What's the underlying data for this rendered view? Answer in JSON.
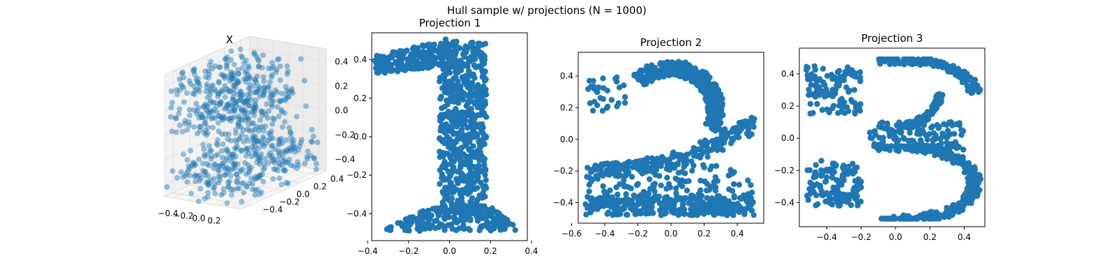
{
  "figure": {
    "suptitle": "Hull sample w/ projections (N = 1000)"
  },
  "chart_data": [
    {
      "type": "scatter3d",
      "title": "X",
      "point_color": "#1f77b4",
      "point_alpha": 0.45,
      "x_ticks": [
        "−0.4",
        "−0.2",
        "0.0",
        "0.2"
      ],
      "y_ticks": [
        "0.4",
        "0.2",
        "0.0",
        "−0.2",
        "−0.4"
      ],
      "z_ticks": [
        "0.4",
        "0.2",
        "0.0",
        "−0.2",
        "−0.4"
      ],
      "xlim": [
        -0.5,
        0.5
      ],
      "ylim": [
        -0.5,
        0.5
      ],
      "zlim": [
        -0.5,
        0.5
      ],
      "grid": true,
      "description_shape": "3D point cloud whose three orthogonal projections form the digits 1, 2 and 3"
    },
    {
      "type": "scatter",
      "title": "Projection 1",
      "shape": "digit-1",
      "point_color": "#1f77b4",
      "xlim": [
        -0.38,
        0.38
      ],
      "ylim": [
        -0.54,
        0.54
      ],
      "x_ticks": [
        -0.4,
        -0.2,
        0.0,
        0.2,
        0.4
      ],
      "y_ticks": [
        -0.4,
        -0.2,
        0.0,
        0.2,
        0.4
      ],
      "x_tick_labels": [
        "−0.4",
        "−0.2",
        "0.0",
        "0.2",
        "0.4"
      ],
      "y_tick_labels": [
        "−0.4",
        "−0.2",
        "0.0",
        "0.2",
        "0.4"
      ],
      "n_points": 1000,
      "regions": [
        {
          "part": "stem",
          "x": [
            -0.05,
            0.18
          ],
          "y": [
            -0.42,
            0.49
          ]
        },
        {
          "part": "flag",
          "from": [
            -0.36,
            0.37
          ],
          "to": [
            0.0,
            0.49
          ]
        },
        {
          "part": "base",
          "x": [
            -0.34,
            0.36
          ],
          "y": [
            -0.49,
            -0.38
          ]
        }
      ]
    },
    {
      "type": "scatter",
      "title": "Projection 2",
      "shape": "digit-2",
      "point_color": "#1f77b4",
      "xlim": [
        -0.56,
        0.56
      ],
      "ylim": [
        -0.53,
        0.55
      ],
      "x_ticks": [
        -0.6,
        -0.4,
        -0.2,
        0.0,
        0.2,
        0.4
      ],
      "y_ticks": [
        -0.4,
        -0.2,
        0.0,
        0.2,
        0.4
      ],
      "x_tick_labels": [
        "−0.6",
        "−0.4",
        "−0.2",
        "0.0",
        "0.2",
        "0.4"
      ],
      "y_tick_labels": [
        "−0.4",
        "−0.2",
        "0.0",
        "0.2",
        "0.4"
      ],
      "n_points": 1000,
      "regions": [
        {
          "part": "top-arc",
          "center": [
            0.02,
            0.2
          ],
          "radius": 0.3
        },
        {
          "part": "diagonal",
          "from": [
            0.48,
            0.1
          ],
          "to": [
            -0.45,
            -0.2
          ]
        },
        {
          "part": "base",
          "x": [
            -0.52,
            0.5
          ],
          "y": [
            -0.48,
            -0.16
          ]
        }
      ]
    },
    {
      "type": "scatter",
      "title": "Projection 3",
      "shape": "digit-3",
      "point_color": "#1f77b4",
      "xlim": [
        -0.56,
        0.52
      ],
      "ylim": [
        -0.55,
        0.56
      ],
      "x_ticks": [
        -0.4,
        -0.2,
        0.0,
        0.2,
        0.4
      ],
      "y_ticks": [
        -0.4,
        -0.2,
        0.0,
        0.2,
        0.4
      ],
      "x_tick_labels": [
        "−0.4",
        "−0.2",
        "0.0",
        "0.2",
        "0.4"
      ],
      "y_tick_labels": [
        "−0.4",
        "−0.2",
        "0.0",
        "0.2",
        "0.4"
      ],
      "n_points": 1000,
      "regions": [
        {
          "part": "top-bowl",
          "x": [
            -0.52,
            0.48
          ],
          "y": [
            0.15,
            0.5
          ]
        },
        {
          "part": "middle-bar",
          "x": [
            -0.15,
            0.45
          ],
          "y": [
            -0.1,
            0.1
          ]
        },
        {
          "part": "bottom-bowl",
          "x": [
            -0.52,
            0.48
          ],
          "y": [
            -0.5,
            -0.15
          ]
        }
      ]
    }
  ]
}
